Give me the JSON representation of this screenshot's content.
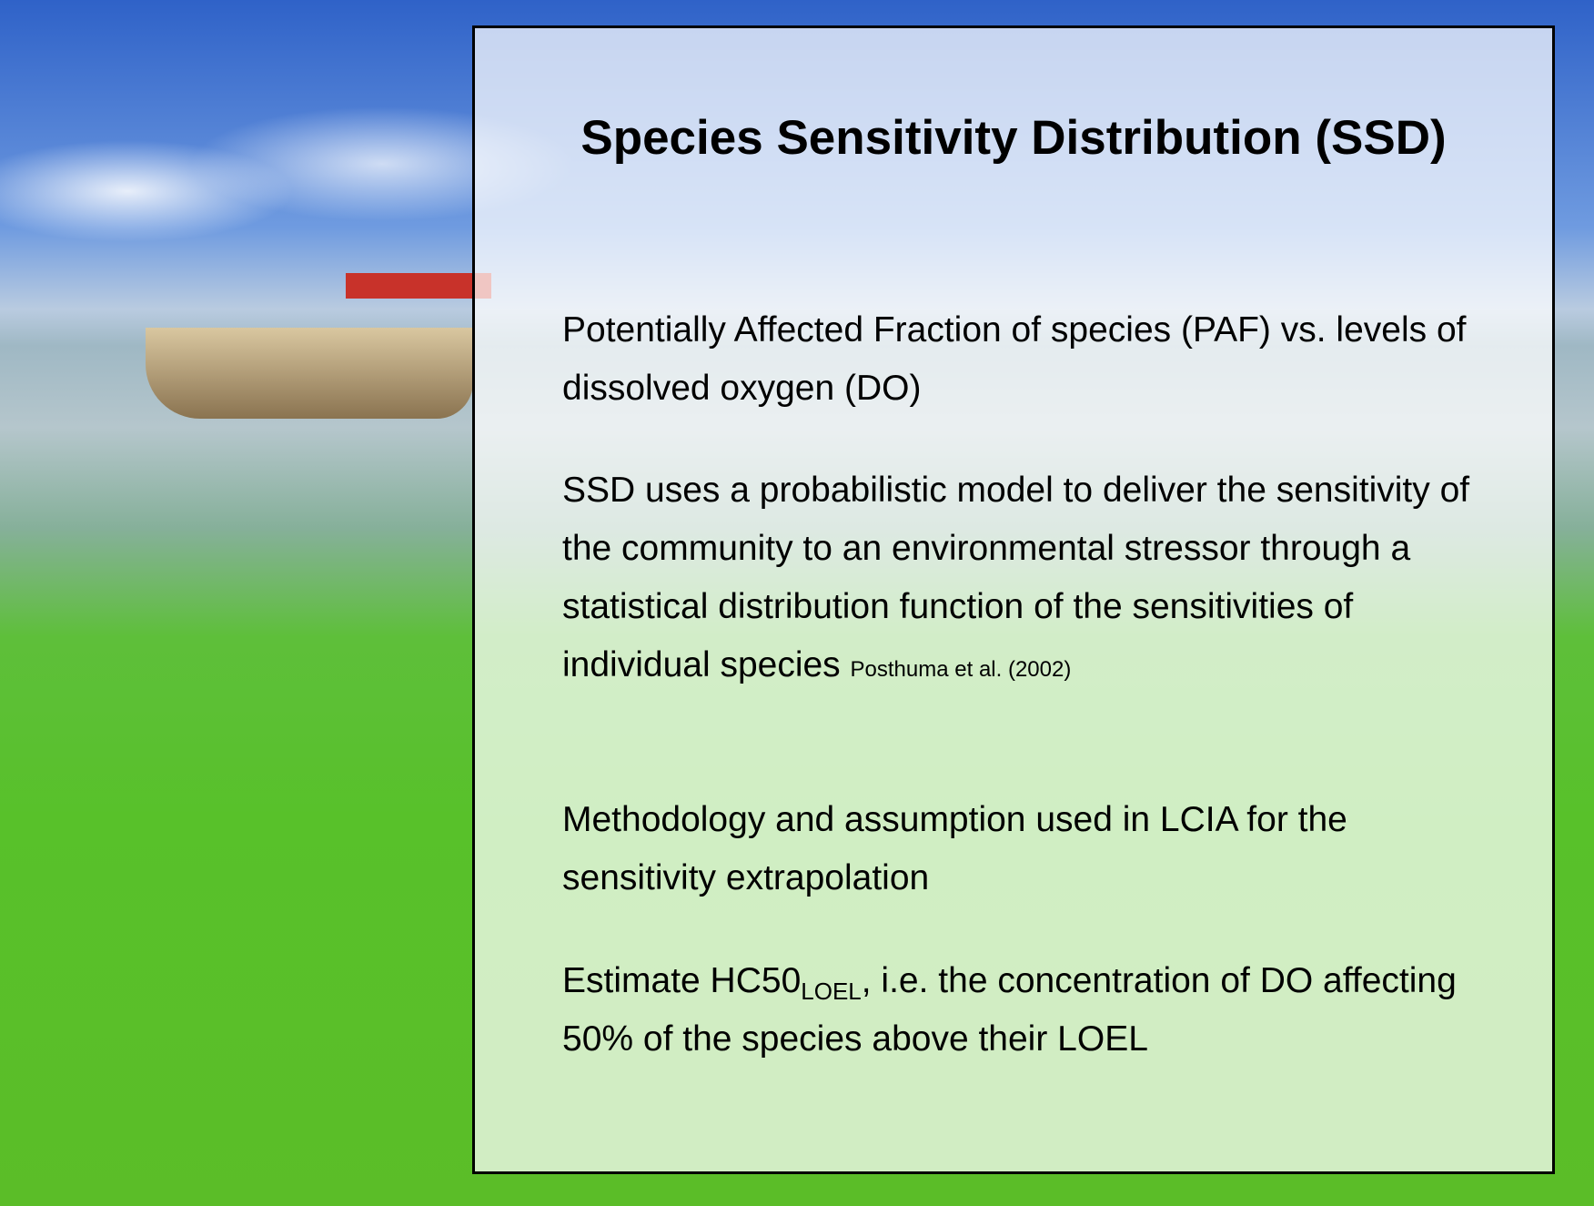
{
  "slide": {
    "title": "Species Sensitivity Distribution (SSD)",
    "points": [
      {
        "text": "Potentially Affected Fraction of species (PAF) vs. levels of dissolved oxygen (DO)"
      },
      {
        "text": "SSD uses a probabilistic model to deliver the sensitivity of the community to an environmental stressor through a statistical distribution function of the sensitivities of individual species",
        "citation": "Posthuma et al. (2002)"
      },
      {
        "text": "Methodology and assumption used in LCIA for the sensitivity extrapolation"
      },
      {
        "text_before": "Estimate HC50",
        "subscript": "LOEL",
        "text_after": ", i.e. the concentration of DO affecting 50% of the species above their LOEL"
      }
    ]
  }
}
